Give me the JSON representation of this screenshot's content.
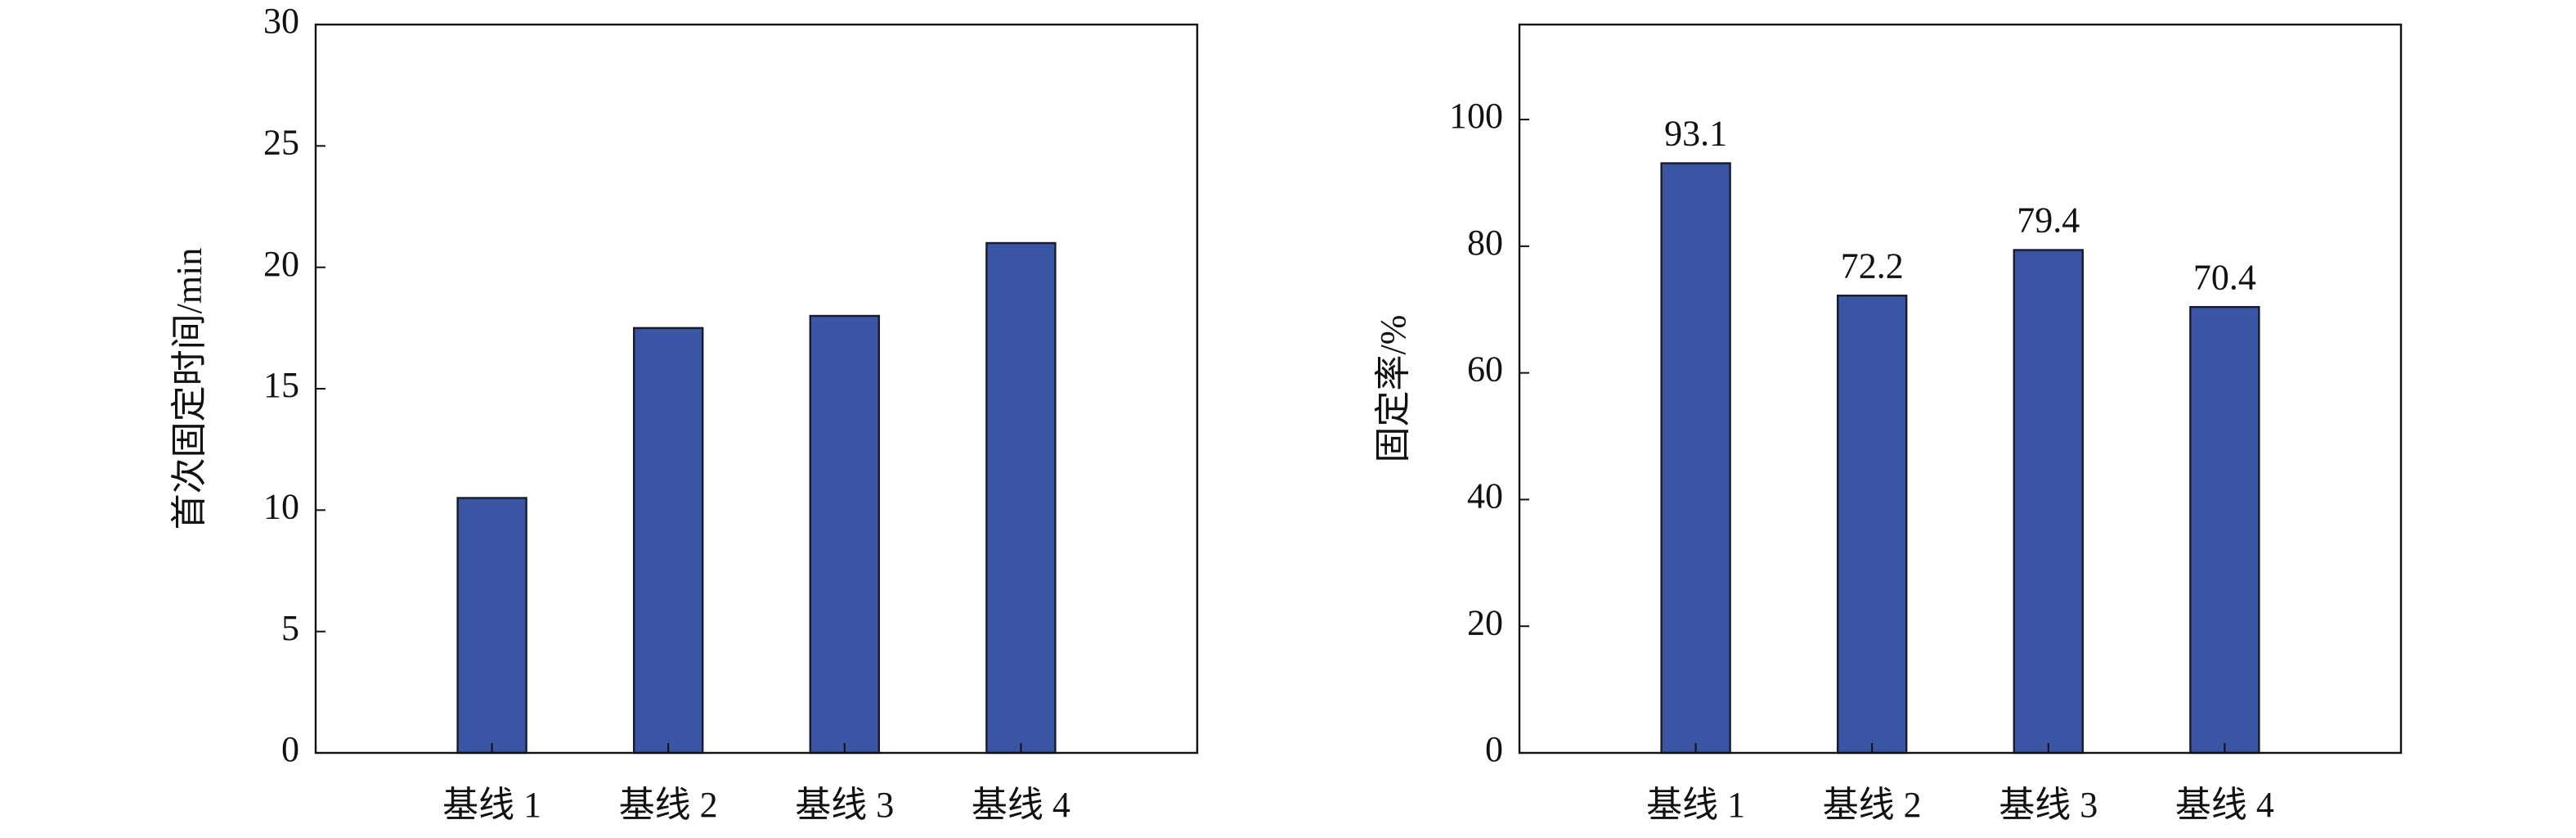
{
  "chart_data": [
    {
      "type": "bar",
      "y_label": "首次固定时间/min",
      "categories": [
        "基线 1",
        "基线 2",
        "基线 3",
        "基线 4"
      ],
      "values": [
        10.5,
        17.5,
        18,
        21
      ],
      "color": "#3a55a4",
      "ylim": [
        0,
        30
      ],
      "yticks": [
        0,
        5,
        10,
        15,
        20,
        25,
        30
      ]
    },
    {
      "type": "bar",
      "y_label": "固定率/%",
      "categories": [
        "基线 1",
        "基线 2",
        "基线 3",
        "基线 4"
      ],
      "values": [
        93.1,
        72.2,
        79.4,
        70.4
      ],
      "color": "#3a55a4",
      "ylim": [
        0,
        115
      ],
      "yticks": [
        0,
        20,
        40,
        60,
        80,
        100
      ],
      "data_labels": true
    }
  ]
}
